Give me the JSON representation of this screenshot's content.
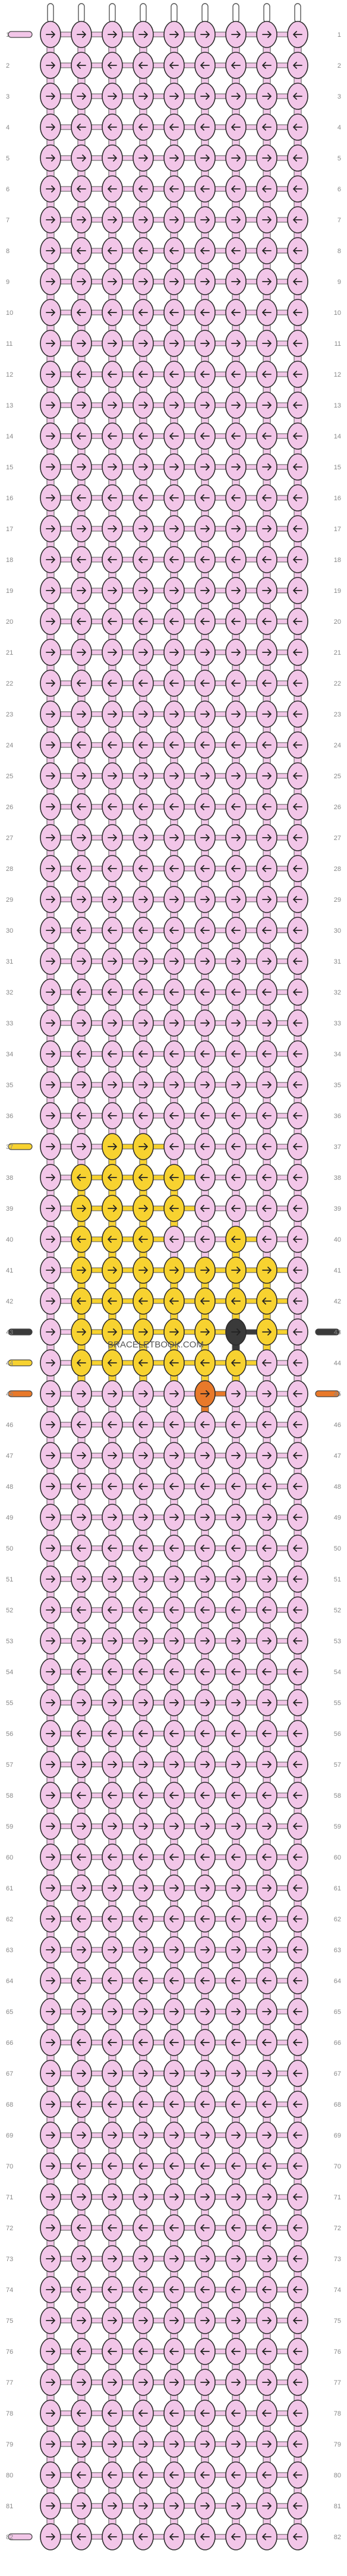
{
  "pattern": {
    "rows_count": 82,
    "cols": 9,
    "watermark": "BRACELETBOOK.COM",
    "colors": {
      "A": "#f2c6e8",
      "B": "#f7d230",
      "C": "#3a3a3a",
      "D": "#e8792a"
    },
    "color_order": [
      "A",
      "B",
      "C",
      "D"
    ],
    "left_strands": {
      "37": "B",
      "43": "C",
      "44": "B",
      "45": "D"
    },
    "right_strands": {
      "43": "C",
      "45": "D"
    },
    "special_rows": {
      "37": [
        "A",
        "A",
        "B",
        "B",
        "A",
        "A",
        "A",
        "A",
        "A"
      ],
      "38": [
        "A",
        "B",
        "B",
        "B",
        "B",
        "A",
        "A",
        "A",
        "A"
      ],
      "39": [
        "A",
        "B",
        "B",
        "B",
        "B",
        "A",
        "A",
        "A",
        "A"
      ],
      "40": [
        "A",
        "B",
        "B",
        "B",
        "A",
        "A",
        "B",
        "A",
        "A"
      ],
      "41": [
        "A",
        "B",
        "B",
        "B",
        "B",
        "B",
        "B",
        "B",
        "A"
      ],
      "42": [
        "A",
        "B",
        "B",
        "B",
        "B",
        "B",
        "B",
        "B",
        "A"
      ],
      "43": [
        "A",
        "B",
        "B",
        "B",
        "B",
        "B",
        "C",
        "B",
        "A"
      ],
      "44": [
        "A",
        "B",
        "B",
        "B",
        "B",
        "B",
        "B",
        "A",
        "A"
      ],
      "45": [
        "A",
        "A",
        "A",
        "A",
        "A",
        "D",
        "A",
        "A",
        "A"
      ]
    },
    "special_dirs": {
      "37": [
        "r",
        "r",
        "r",
        "r",
        "l",
        "l",
        "l",
        "l",
        "l"
      ],
      "38": [
        "r",
        "l",
        "l",
        "l",
        "l",
        "l",
        "l",
        "l",
        "l"
      ],
      "39": [
        "r",
        "r",
        "r",
        "r",
        "l",
        "l",
        "l",
        "l",
        "l"
      ],
      "40": [
        "r",
        "l",
        "l",
        "l",
        "l",
        "l",
        "l",
        "l",
        "l"
      ],
      "41": [
        "r",
        "r",
        "r",
        "r",
        "r",
        "r",
        "r",
        "r",
        "l"
      ],
      "42": [
        "r",
        "l",
        "l",
        "l",
        "l",
        "l",
        "l",
        "l",
        "l"
      ],
      "43": [
        "r",
        "r",
        "r",
        "r",
        "r",
        "r",
        "r",
        "r",
        "l"
      ],
      "44": [
        "r",
        "l",
        "l",
        "l",
        "l",
        "l",
        "l",
        "l",
        "l"
      ],
      "45": [
        "r",
        "r",
        "r",
        "r",
        "r",
        "r",
        "r",
        "r",
        "l"
      ]
    },
    "special_dirs_default_odd": [
      "r",
      "r",
      "r",
      "r",
      "r",
      "r",
      "r",
      "r",
      "l"
    ],
    "special_dirs_default_even": [
      "r",
      "l",
      "l",
      "l",
      "l",
      "l",
      "l",
      "l",
      "l"
    ]
  }
}
